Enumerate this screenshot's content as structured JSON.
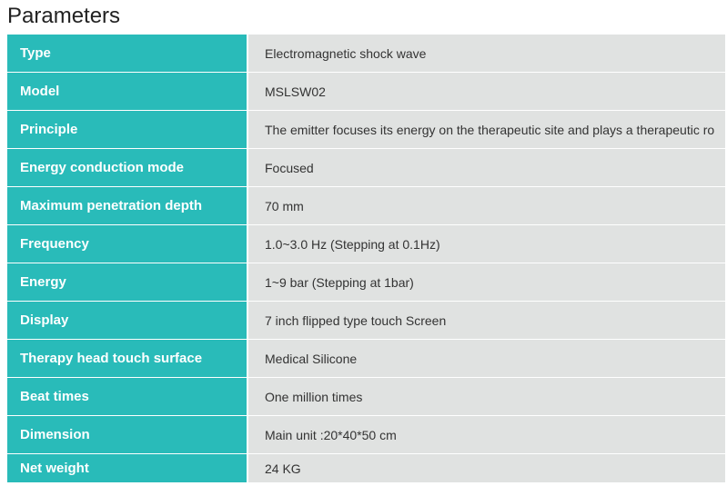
{
  "heading": "Parameters",
  "colors": {
    "label_bg": "#29bbb9",
    "value_bg": "#e0e2e1",
    "label_text": "#ffffff",
    "value_text": "#333333",
    "heading_text": "#222222",
    "border": "#ffffff"
  },
  "fontsize": {
    "heading": 24,
    "label": 15,
    "value": 14
  },
  "rows": [
    {
      "label": "Type",
      "value": "Electromagnetic shock wave"
    },
    {
      "label": "Model",
      "value": "MSLSW02"
    },
    {
      "label": "Principle",
      "value": "The emitter focuses its energy on the therapeutic site and plays a therapeutic ro"
    },
    {
      "label": "Energy conduction mode",
      "value": "Focused"
    },
    {
      "label": "Maximum penetration depth",
      "value": "70 mm"
    },
    {
      "label": "Frequency",
      "value": "1.0~3.0 Hz (Stepping at 0.1Hz)"
    },
    {
      "label": "Energy",
      "value": "1~9 bar (Stepping at 1bar)"
    },
    {
      "label": "Display",
      "value": "7 inch flipped type touch Screen"
    },
    {
      "label": "Therapy head touch surface",
      "value": "Medical Silicone"
    },
    {
      "label": "Beat times",
      "value": "One million times"
    },
    {
      "label": "Dimension",
      "value": "Main unit :20*40*50 cm"
    },
    {
      "label": "Net weight",
      "value": "24 KG"
    }
  ]
}
